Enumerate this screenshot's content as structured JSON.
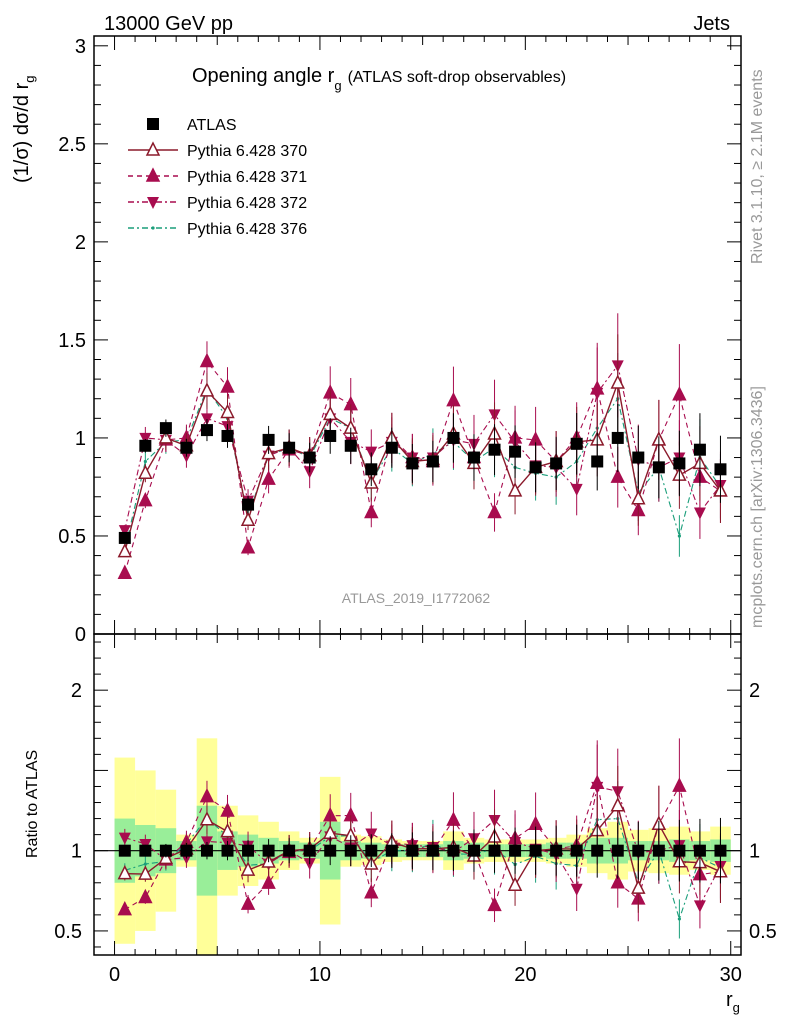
{
  "header": {
    "energy_label": "13000 GeV pp",
    "process_label": "Jets"
  },
  "side_labels": {
    "rivet": "Rivet 3.1.10, ≥ 2.1M events",
    "mcplots": "mcplots.cern.ch [arXiv:1306.3436]"
  },
  "chart_data": [
    {
      "type": "scatter",
      "title_main": "Opening angle r",
      "title_sub": "g",
      "title_extra": "(ATLAS soft-drop observables)",
      "ylabel": "(1/σ) dσ/d r",
      "ylabel_sub": "g",
      "analysis_label": "ATLAS_2019_I1772062",
      "xlim": [
        -1,
        30.5
      ],
      "ylim": [
        0,
        3.05
      ],
      "yticks": [
        0,
        0.5,
        1,
        1.5,
        2,
        2.5,
        3
      ],
      "ytick_labels": [
        "0",
        "0.5",
        "1",
        "1.5",
        "2",
        "2.5",
        "3"
      ],
      "x": [
        0.5,
        1.5,
        2.5,
        3.5,
        4.5,
        5.5,
        6.5,
        7.5,
        8.5,
        9.5,
        10.5,
        11.5,
        12.5,
        13.5,
        14.5,
        15.5,
        16.5,
        17.5,
        18.5,
        19.5,
        20.5,
        21.5,
        22.5,
        23.5,
        24.5,
        25.5,
        26.5,
        27.5,
        28.5,
        29.5
      ],
      "legend": [
        {
          "name": "ATLAS",
          "marker": "square",
          "color": "#000000",
          "line": "none"
        },
        {
          "name": "Pythia 6.428 370",
          "marker": "triangle-up-open",
          "color": "#8b1a2b",
          "line": "solid"
        },
        {
          "name": "Pythia 6.428 371",
          "marker": "triangle-up",
          "color": "#a80c4e",
          "line": "dashed"
        },
        {
          "name": "Pythia 6.428 372",
          "marker": "triangle-down",
          "color": "#a80c4e",
          "line": "dashdot"
        },
        {
          "name": "Pythia 6.428 376",
          "marker": "dot",
          "color": "#1a9e7a",
          "line": "dashdot"
        }
      ],
      "series": [
        {
          "name": "ATLAS",
          "values": [
            0.49,
            0.96,
            1.05,
            0.95,
            1.04,
            1.01,
            0.66,
            0.99,
            0.95,
            0.9,
            1.01,
            0.96,
            0.84,
            0.95,
            0.87,
            0.88,
            1.0,
            0.9,
            0.94,
            0.93,
            0.85,
            0.87,
            0.97,
            0.88,
            1.0,
            0.9,
            0.85,
            0.87,
            0.94,
            0.84
          ]
        },
        {
          "name": "Pythia 6.428 370",
          "values": [
            0.42,
            0.82,
            1.0,
            0.96,
            1.24,
            1.13,
            0.58,
            0.92,
            0.95,
            0.91,
            1.12,
            1.05,
            0.77,
            1.0,
            0.88,
            0.89,
            1.02,
            0.87,
            1.02,
            0.73,
            0.85,
            0.88,
            0.98,
            0.99,
            1.28,
            0.69,
            0.99,
            0.81,
            0.87,
            0.73
          ]
        },
        {
          "name": "Pythia 6.428 371",
          "values": [
            0.31,
            0.68,
            0.99,
            1.0,
            1.39,
            1.26,
            0.44,
            0.79,
            0.94,
            0.91,
            1.23,
            1.17,
            0.62,
            1.0,
            0.9,
            0.88,
            1.19,
            0.9,
            0.62,
            1.0,
            0.99,
            0.88,
            1.0,
            1.25,
            0.8,
            0.63,
            0.99,
            1.22,
            0.8,
            0.73
          ]
        },
        {
          "name": "Pythia 6.428 372",
          "values": [
            0.53,
            1.0,
            0.99,
            0.91,
            1.1,
            1.06,
            0.68,
            0.91,
            0.95,
            0.83,
            1.1,
            0.98,
            0.93,
            0.98,
            0.9,
            0.9,
            0.99,
            0.97,
            1.12,
            0.98,
            0.86,
            0.85,
            0.74,
            1.23,
            1.37,
            0.89,
            0.85,
            0.9,
            0.62,
            0.76
          ]
        },
        {
          "name": "Pythia 6.428 376",
          "values": [
            0.43,
            0.88,
            0.98,
            0.99,
            1.25,
            1.1,
            0.6,
            0.91,
            0.95,
            0.9,
            1.1,
            1.05,
            0.78,
            0.95,
            0.87,
            0.92,
            0.98,
            0.88,
            0.95,
            0.85,
            0.82,
            0.8,
            0.88,
            1.05,
            1.2,
            0.72,
            0.85,
            0.5,
            0.9,
            0.75
          ]
        }
      ]
    },
    {
      "type": "scatter",
      "ylabel": "Ratio to ATLAS",
      "xlabel": "r",
      "xlabel_sub": "g",
      "xlim": [
        -1,
        30.5
      ],
      "ylim": [
        0.35,
        2.35
      ],
      "xticks": [
        0,
        10,
        20,
        30
      ],
      "xtick_labels": [
        "0",
        "10",
        "20",
        "30"
      ],
      "yticks": [
        0.5,
        1,
        2
      ],
      "ytick_labels": [
        "0.5",
        "1",
        "2"
      ],
      "band_inner_halfwidth": [
        0.2,
        0.16,
        0.14,
        0.06,
        0.28,
        0.12,
        0.1,
        0.08,
        0.06,
        0.05,
        0.18,
        0.06,
        0.05,
        0.04,
        0.04,
        0.04,
        0.06,
        0.05,
        0.04,
        0.04,
        0.04,
        0.05,
        0.05,
        0.08,
        0.08,
        0.06,
        0.06,
        0.07,
        0.06,
        0.07
      ],
      "band_outer_halfwidth": [
        0.58,
        0.5,
        0.38,
        0.1,
        0.7,
        0.28,
        0.22,
        0.18,
        0.12,
        0.08,
        0.46,
        0.1,
        0.09,
        0.07,
        0.06,
        0.06,
        0.12,
        0.08,
        0.07,
        0.07,
        0.07,
        0.08,
        0.1,
        0.14,
        0.18,
        0.13,
        0.14,
        0.15,
        0.12,
        0.15
      ]
    }
  ]
}
